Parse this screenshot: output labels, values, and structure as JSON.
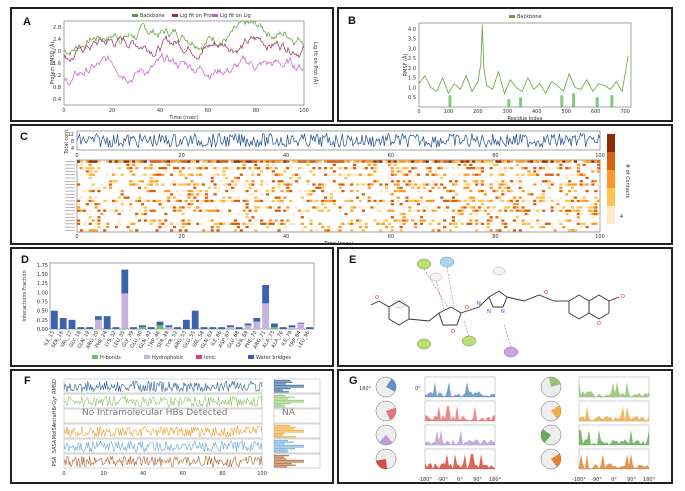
{
  "panels": {
    "A": {
      "label": "A",
      "chart_data": {
        "type": "line",
        "xlabel": "Time (nsec)",
        "ylabel": "Protein RMSD (Å)",
        "ylabel_right": "Lig fit on Prot (Å)",
        "x_ticks": [
          "0",
          "20",
          "40",
          "60",
          "80",
          "100"
        ],
        "y_ticks": [
          "0.4",
          "0.8",
          "1.2",
          "1.6",
          "2.0",
          "2.4",
          "2.8"
        ],
        "legend": [
          "Backbone",
          "Lig fit on Prot",
          "Lig fit on Lig"
        ],
        "colors": [
          "#5a9e32",
          "#a0285a",
          "#c060c8"
        ],
        "xlim": [
          0,
          100
        ],
        "ylim": [
          0.2,
          3.0
        ],
        "series_means": [
          2.6,
          2.3,
          1.5
        ]
      }
    },
    "B": {
      "label": "B",
      "chart_data": {
        "type": "line",
        "xlabel": "Residue Index",
        "ylabel": "RMSF (Å)",
        "x_ticks": [
          "0",
          "100",
          "200",
          "300",
          "400",
          "500",
          "600",
          "700"
        ],
        "y_ticks": [
          "0.5",
          "1.0",
          "1.5",
          "2.0",
          "2.5",
          "3.0",
          "3.5",
          "4.0"
        ],
        "legend": [
          "Backbone"
        ],
        "color": "#6aa040",
        "xlim": [
          0,
          720
        ],
        "ylim": [
          0,
          4.3
        ],
        "x": [
          0,
          20,
          40,
          60,
          80,
          100,
          120,
          140,
          160,
          180,
          200,
          210,
          215,
          220,
          230,
          250,
          270,
          290,
          310,
          330,
          350,
          370,
          390,
          410,
          430,
          450,
          470,
          490,
          510,
          530,
          550,
          570,
          590,
          610,
          630,
          650,
          670,
          690,
          710
        ],
        "values": [
          1.2,
          1.6,
          1.0,
          0.8,
          1.5,
          0.7,
          1.2,
          0.9,
          1.6,
          0.8,
          1.3,
          2.2,
          4.2,
          2.0,
          1.1,
          0.9,
          1.8,
          0.7,
          1.4,
          1.0,
          0.8,
          1.5,
          0.9,
          1.2,
          0.7,
          1.3,
          1.1,
          0.8,
          1.7,
          1.0,
          0.9,
          1.4,
          0.8,
          1.2,
          1.1,
          0.9,
          1.3,
          0.8,
          2.6
        ]
      }
    },
    "C": {
      "label": "C",
      "chart_data": {
        "type": "heatmap",
        "top_ylabel": "Total cont.",
        "top_y_ticks": [
          "12",
          "8",
          "4"
        ],
        "xlabel": "Time (nsec)",
        "x_ticks": [
          "0",
          "20",
          "40",
          "60",
          "80",
          "100"
        ],
        "colorbar_label": "# of Contacts",
        "colorbar_ticks": [
          "4"
        ],
        "colors": [
          "#8c2d04",
          "#d95f0e",
          "#fe9929",
          "#fec44f",
          "#fee8c8"
        ]
      }
    },
    "D": {
      "label": "D",
      "chart_data": {
        "type": "bar",
        "ylabel": "Interactions Fraction",
        "y_ticks": [
          "0.00",
          "0.25",
          "0.50",
          "0.75",
          "1.00",
          "1.25",
          "1.50",
          "1.75"
        ],
        "ylim": [
          0,
          1.8
        ],
        "legend": [
          "H-bonds",
          "Hydrophobic",
          "Ionic",
          "Water bridges"
        ],
        "colors": [
          "#66c266",
          "#c7b3e0",
          "#e0407a",
          "#3b63b0"
        ],
        "categories": [
          "ILE_15",
          "SER_16",
          "VAL_17",
          "GLY_18",
          "GLN_19",
          "ARG_20",
          "PHE_24",
          "LYS_32",
          "LEU_35",
          "GLY_39",
          "GLU_40",
          "GLN_42",
          "TRP_46",
          "SER_48",
          "TYR_52",
          "ARG_53",
          "GLU_55",
          "VAL_58",
          "GLN_63",
          "ILE_66",
          "ASP_67",
          "GLU_68",
          "SER_69",
          "PHE_70",
          "ARG_71",
          "ALA_73",
          "ALA_76",
          "ILE_79",
          "TRP_84",
          "LEU_96"
        ],
        "series": [
          {
            "name": "H-bonds",
            "values": [
              0,
              0,
              0,
              0,
              0,
              0,
              0,
              0,
              0.02,
              0,
              0.05,
              0,
              0.1,
              0,
              0,
              0,
              0,
              0,
              0,
              0,
              0,
              0,
              0,
              0,
              0,
              0.05,
              0,
              0,
              0,
              0
            ]
          },
          {
            "name": "Hydrophobic",
            "values": [
              0,
              0,
              0,
              0,
              0,
              0.25,
              0,
              0,
              0.95,
              0,
              0,
              0,
              0,
              0.05,
              0,
              0,
              0,
              0,
              0,
              0,
              0.05,
              0,
              0.1,
              0.2,
              0.7,
              0,
              0,
              0.05,
              0.15,
              0
            ]
          },
          {
            "name": "Ionic",
            "values": [
              0,
              0,
              0,
              0,
              0,
              0,
              0,
              0,
              0,
              0,
              0,
              0,
              0,
              0,
              0,
              0,
              0,
              0,
              0,
              0,
              0,
              0,
              0,
              0,
              0,
              0,
              0,
              0,
              0,
              0
            ]
          },
          {
            "name": "Water bridges",
            "values": [
              0.5,
              0.3,
              0.25,
              0.05,
              0.05,
              0.1,
              0.35,
              0.05,
              0.65,
              0.05,
              0.05,
              0.05,
              0.1,
              0.05,
              0.05,
              0.25,
              0.5,
              0.05,
              0.05,
              0.05,
              0.05,
              0.05,
              0.05,
              0.1,
              0.5,
              0.1,
              0.05,
              0.05,
              0.02,
              0.05
            ]
          }
        ]
      }
    },
    "E": {
      "label": "E"
    },
    "F": {
      "label": "F",
      "chart_data": {
        "type": "line",
        "xlabel": "",
        "x_ticks": [
          "0",
          "20",
          "40",
          "60",
          "80",
          "100"
        ],
        "row_labels": [
          "RMSD",
          "rGyr",
          "intraHB",
          "MolSA",
          "SASA",
          "PSA"
        ],
        "annotation": "No Intramolecular HBs Detected",
        "annotation_right": "NA",
        "colors": [
          "#2c5e9a",
          "#8fc46a",
          "#888888",
          "#f0a030",
          "#6aa8d8",
          "#b0602a"
        ]
      }
    },
    "G": {
      "label": "G",
      "chart_data": {
        "type": "area",
        "x_ticks": [
          "-180°",
          "-90°",
          "0°",
          "90°",
          "180°"
        ],
        "dial_ticks": [
          "180°",
          "0°"
        ],
        "colors": [
          "#4a7fc0",
          "#e06060",
          "#b090d0",
          "#d03020",
          "#8ab860",
          "#f0a030",
          "#50a040",
          "#e07010"
        ]
      }
    }
  }
}
